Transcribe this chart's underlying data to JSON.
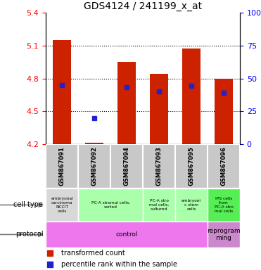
{
  "title": "GDS4124 / 241199_x_at",
  "samples": [
    "GSM867091",
    "GSM867092",
    "GSM867094",
    "GSM867093",
    "GSM867095",
    "GSM867096"
  ],
  "bar_bottoms": [
    4.2,
    4.2,
    4.2,
    4.2,
    4.2,
    4.2
  ],
  "bar_tops": [
    5.15,
    4.21,
    4.95,
    4.84,
    5.07,
    4.8
  ],
  "percentile_values": [
    4.74,
    4.44,
    4.72,
    4.68,
    4.73,
    4.67
  ],
  "ylim_left": [
    4.2,
    5.4
  ],
  "ylim_right": [
    0,
    100
  ],
  "yticks_left": [
    4.2,
    4.5,
    4.8,
    5.1,
    5.4
  ],
  "yticks_right": [
    0,
    25,
    50,
    75,
    100
  ],
  "hlines": [
    5.1,
    4.8,
    4.5
  ],
  "bar_color": "#cc2200",
  "dot_color": "#2222cc",
  "bar_width": 0.55,
  "sample_label_color": "#c8c8c8",
  "cell_configs": [
    {
      "start": 0,
      "end": 0,
      "label": "embryonal\ncarcinoma\nNCCIT\ncells",
      "color": "#d8d8d8"
    },
    {
      "start": 1,
      "end": 2,
      "label": "PC-A stromal cells,\nsorted",
      "color": "#aaffaa"
    },
    {
      "start": 3,
      "end": 3,
      "label": "PC-A stro\nmal cells,\ncultured",
      "color": "#aaffaa"
    },
    {
      "start": 4,
      "end": 4,
      "label": "embryoni\nc stem\ncells",
      "color": "#aaffaa"
    },
    {
      "start": 5,
      "end": 5,
      "label": "IPS cells\nfrom\nPC-A stro\nmal cells",
      "color": "#55ee55"
    }
  ],
  "proto_configs": [
    {
      "start": 0,
      "end": 4,
      "label": "control",
      "color": "#ee77ee"
    },
    {
      "start": 5,
      "end": 5,
      "label": "reprogram\nming",
      "color": "#cc88cc"
    }
  ],
  "legend_items": [
    {
      "label": "transformed count",
      "color": "#cc2200"
    },
    {
      "label": "percentile rank within the sample",
      "color": "#2222cc"
    }
  ]
}
